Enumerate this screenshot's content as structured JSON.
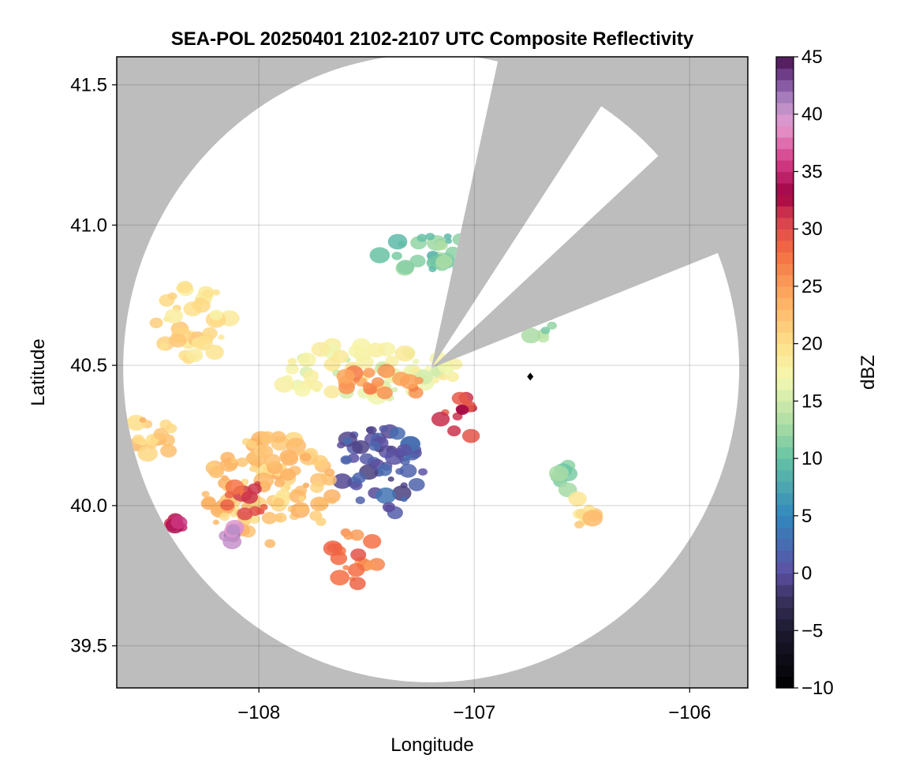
{
  "chart_data": {
    "type": "heatmap",
    "title": "SEA-POL 20250401 2102-2107 UTC Composite Reflectivity",
    "xlabel": "Longitude",
    "ylabel": "Latitude",
    "xlim": [
      -108.66,
      -105.73
    ],
    "ylim": [
      39.35,
      41.6
    ],
    "xticks": [
      -108,
      -107,
      -106
    ],
    "xtick_labels": [
      "−108",
      "−107",
      "−106"
    ],
    "yticks": [
      39.5,
      40.0,
      40.5,
      41.0,
      41.5
    ],
    "ytick_labels": [
      "39.5",
      "40.0",
      "40.5",
      "41.0",
      "41.5"
    ],
    "grid": true,
    "background_color": "#bdbdbd",
    "radar": {
      "center_lon": -107.2,
      "center_lat": 40.49,
      "range_lat_deg": 1.12,
      "range_lon_deg": 1.43,
      "blocked_sectors": [
        {
          "from_azimuth_deg": 13,
          "to_azimuth_deg": 33
        },
        {
          "from_azimuth_deg": 48,
          "to_azimuth_deg": 68
        }
      ]
    },
    "colorbar": {
      "label": "dBZ",
      "range": [
        -10,
        45
      ],
      "ticks": [
        -10,
        -5,
        0,
        5,
        10,
        15,
        20,
        25,
        30,
        35,
        40,
        45
      ],
      "tick_labels": [
        "−10",
        "−5",
        "0",
        "5",
        "10",
        "15",
        "20",
        "25",
        "30",
        "35",
        "40",
        "45"
      ],
      "colormap": "Spectral (reversed) with dark extension",
      "stops": [
        {
          "value": -10,
          "color": "#000000"
        },
        {
          "value": -5,
          "color": "#1c1a2e"
        },
        {
          "value": -2,
          "color": "#3b3464"
        },
        {
          "value": 0,
          "color": "#5e4fa2"
        },
        {
          "value": 5,
          "color": "#3288bd"
        },
        {
          "value": 10,
          "color": "#66c2a5"
        },
        {
          "value": 13,
          "color": "#abdda4"
        },
        {
          "value": 17,
          "color": "#f4f8b0"
        },
        {
          "value": 20,
          "color": "#fee08b"
        },
        {
          "value": 24,
          "color": "#fdae61"
        },
        {
          "value": 28,
          "color": "#f46d43"
        },
        {
          "value": 31,
          "color": "#d53e4f"
        },
        {
          "value": 33,
          "color": "#9e0142"
        },
        {
          "value": 36,
          "color": "#d6408b"
        },
        {
          "value": 39,
          "color": "#e69bcf"
        },
        {
          "value": 41,
          "color": "#b58cc7"
        },
        {
          "value": 43,
          "color": "#7b4a99"
        },
        {
          "value": 45,
          "color": "#4a1150"
        }
      ]
    },
    "echo_regions": [
      {
        "name": "central low-reflectivity area",
        "lon": -107.45,
        "lat": 40.12,
        "rlon": 0.22,
        "rlat": 0.16,
        "dbz": 1
      },
      {
        "name": "southwest broad rain area",
        "lon": -107.95,
        "lat": 40.05,
        "rlon": 0.32,
        "rlat": 0.2,
        "dbz": 22
      },
      {
        "name": "southwest core",
        "lon": -108.05,
        "lat": 40.02,
        "rlon": 0.1,
        "rlat": 0.08,
        "dbz": 29
      },
      {
        "name": "south core",
        "lon": -107.55,
        "lat": 39.82,
        "rlon": 0.12,
        "rlat": 0.1,
        "dbz": 27
      },
      {
        "name": "far west band",
        "lon": -108.5,
        "lat": 40.25,
        "rlon": 0.12,
        "rlat": 0.08,
        "dbz": 22
      },
      {
        "name": "northern band",
        "lon": -107.5,
        "lat": 40.48,
        "rlon": 0.45,
        "rlat": 0.1,
        "dbz": 17
      },
      {
        "name": "northern band cores",
        "lon": -107.4,
        "lat": 40.44,
        "rlon": 0.22,
        "rlat": 0.05,
        "dbz": 26
      },
      {
        "name": "east core",
        "lon": -107.07,
        "lat": 40.31,
        "rlon": 0.09,
        "rlat": 0.08,
        "dbz": 31
      },
      {
        "name": "east cell",
        "lon": -106.58,
        "lat": 40.1,
        "rlon": 0.06,
        "rlat": 0.05,
        "dbz": 11
      },
      {
        "name": "southeast cell",
        "lon": -106.5,
        "lat": 39.97,
        "rlon": 0.06,
        "rlat": 0.06,
        "dbz": 21
      },
      {
        "name": "northeast light echo",
        "lon": -106.7,
        "lat": 40.65,
        "rlon": 0.08,
        "rlat": 0.06,
        "dbz": 13
      },
      {
        "name": "north light echoes",
        "lon": -107.2,
        "lat": 40.9,
        "rlon": 0.3,
        "rlat": 0.07,
        "dbz": 11
      },
      {
        "name": "west scattered cells",
        "lon": -108.3,
        "lat": 40.65,
        "rlon": 0.18,
        "rlat": 0.14,
        "dbz": 20
      },
      {
        "name": "southwest hail core",
        "lon": -108.13,
        "lat": 39.9,
        "rlon": 0.03,
        "rlat": 0.03,
        "dbz": 39
      },
      {
        "name": "far southwest core",
        "lon": -108.38,
        "lat": 39.93,
        "rlon": 0.04,
        "rlat": 0.03,
        "dbz": 33
      }
    ],
    "marker": {
      "lon": -106.74,
      "lat": 40.46,
      "symbol": "diamond",
      "color": "#000000"
    }
  }
}
